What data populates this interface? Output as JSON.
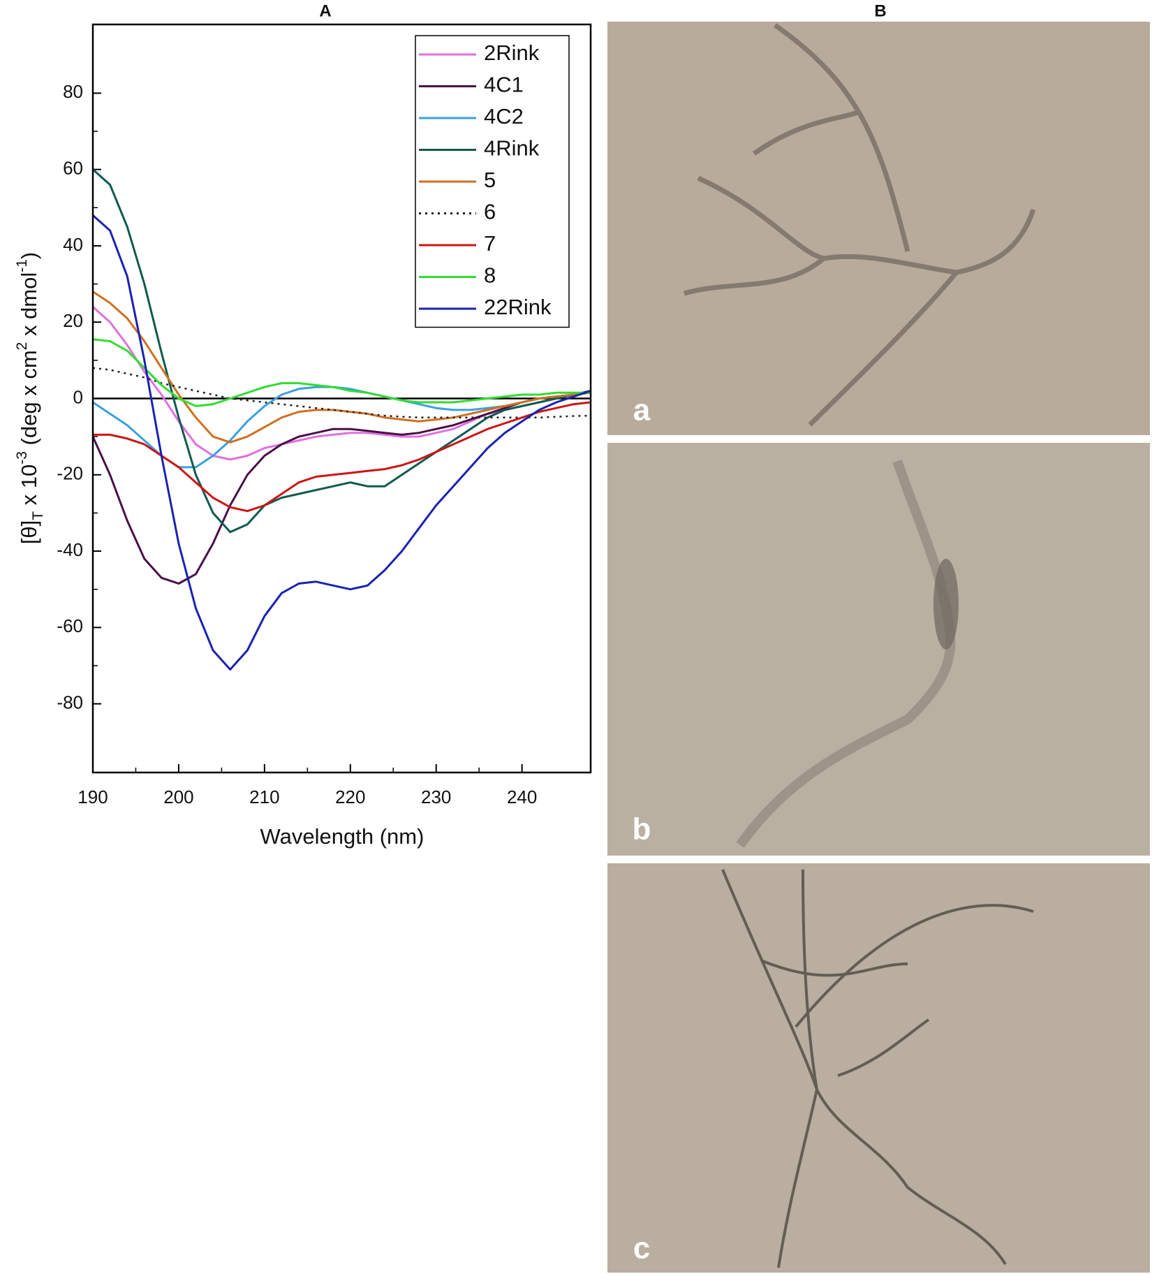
{
  "chart_data": {
    "type": "line",
    "panel_titles": [
      "A",
      "B"
    ],
    "x_label": "Wavelength (nm)",
    "y_label_parts": [
      "[θ]",
      "T",
      " x 10",
      "-3",
      " (deg x cm",
      "2",
      " x dmol",
      "-1",
      ")"
    ],
    "x": [
      190,
      192,
      194,
      196,
      198,
      200,
      202,
      204,
      206,
      208,
      210,
      212,
      214,
      216,
      218,
      220,
      222,
      224,
      226,
      228,
      230,
      232,
      234,
      236,
      238,
      240,
      242,
      244,
      246,
      248
    ],
    "xlim": [
      190,
      248
    ],
    "ylim": [
      -98,
      98
    ],
    "xticks": [
      190,
      200,
      210,
      220,
      230,
      240
    ],
    "yticks": [
      80,
      60,
      40,
      20,
      0,
      -20,
      -40,
      -60,
      -80
    ],
    "zero_line": true,
    "legend_position": "upper right",
    "series": [
      {
        "name": "2Rink",
        "color": "#e070e0",
        "values": [
          24,
          20,
          14,
          7,
          1,
          -6,
          -12,
          -15,
          -16,
          -15,
          -13,
          -12,
          -11,
          -10,
          -9.5,
          -9,
          -9,
          -9.5,
          -10,
          -10,
          -9,
          -8,
          -6,
          -4,
          -3,
          -2,
          -1,
          0,
          1,
          1.5
        ]
      },
      {
        "name": "4C1",
        "color": "#4a1048",
        "values": [
          -10,
          -20,
          -32,
          -42,
          -47,
          -48.5,
          -46,
          -38,
          -28,
          -20,
          -15,
          -12,
          -10,
          -9,
          -8,
          -8,
          -8.5,
          -9,
          -9.5,
          -9,
          -8,
          -7,
          -5.5,
          -4,
          -2.5,
          -1,
          0,
          0.5,
          1,
          1.5
        ]
      },
      {
        "name": "4C2",
        "color": "#3aa0e0",
        "values": [
          -1,
          -4,
          -7,
          -11,
          -15,
          -18,
          -18,
          -15,
          -11,
          -6,
          -2,
          1,
          2.5,
          3,
          3,
          2.5,
          1.5,
          0.5,
          -0.5,
          -1.5,
          -2.5,
          -3,
          -3,
          -2.5,
          -2,
          -1,
          0,
          0.5,
          1,
          1.5
        ]
      },
      {
        "name": "4Rink",
        "color": "#0f5a50",
        "values": [
          60,
          56,
          45,
          30,
          12,
          -5,
          -20,
          -30,
          -35,
          -33,
          -28,
          -26,
          -25,
          -24,
          -23,
          -22,
          -23,
          -23,
          -20,
          -17,
          -14,
          -11,
          -8,
          -5,
          -3,
          -2,
          -1,
          0,
          1,
          2
        ]
      },
      {
        "name": "5",
        "color": "#d07020",
        "values": [
          28,
          25,
          21,
          15,
          8,
          1,
          -5,
          -10,
          -11.5,
          -10,
          -7.5,
          -5,
          -3.5,
          -3,
          -3,
          -3.5,
          -4,
          -5,
          -5.5,
          -6,
          -5.5,
          -5,
          -4,
          -3,
          -2,
          -1,
          0,
          0.5,
          1,
          1.5
        ]
      },
      {
        "name": "6",
        "color": "#222222",
        "line_style": "dotted",
        "values": [
          8,
          7.5,
          6.5,
          5.5,
          4,
          3,
          2,
          1,
          0,
          -0.5,
          -1,
          -1.5,
          -2,
          -2.5,
          -3,
          -3.5,
          -4,
          -4.5,
          -4.8,
          -5,
          -5,
          -5,
          -5,
          -5,
          -5,
          -5,
          -5,
          -4.8,
          -4.6,
          -4.5
        ]
      },
      {
        "name": "7",
        "color": "#cc1515",
        "values": [
          -9.5,
          -9.5,
          -10.5,
          -12,
          -15,
          -18,
          -22,
          -26,
          -28.5,
          -29.5,
          -28,
          -25,
          -22,
          -20.5,
          -20,
          -19.5,
          -19,
          -18.5,
          -17.5,
          -16,
          -14,
          -12,
          -10,
          -8,
          -6.5,
          -5,
          -3.5,
          -2.5,
          -1.5,
          -1
        ]
      },
      {
        "name": "8",
        "color": "#30dd30",
        "values": [
          15.5,
          15,
          12.5,
          8,
          3.5,
          0,
          -2,
          -1.5,
          0,
          1.5,
          3,
          4,
          4,
          3.5,
          3,
          2,
          1.5,
          0.5,
          -0.5,
          -1,
          -1,
          -1,
          -0.5,
          0,
          0.5,
          1,
          1,
          1.5,
          1.5,
          1.5
        ]
      },
      {
        "name": "22Rink",
        "color": "#1a22b0",
        "values": [
          48,
          44,
          32,
          10,
          -15,
          -38,
          -55,
          -66,
          -71,
          -66,
          -57,
          -51,
          -48.5,
          -48,
          -49,
          -50,
          -49,
          -45,
          -40,
          -34,
          -28,
          -23,
          -18,
          -13,
          -9,
          -6,
          -3,
          -1,
          0.5,
          2
        ]
      }
    ],
    "photo_labels": [
      "a",
      "b",
      "c"
    ]
  }
}
